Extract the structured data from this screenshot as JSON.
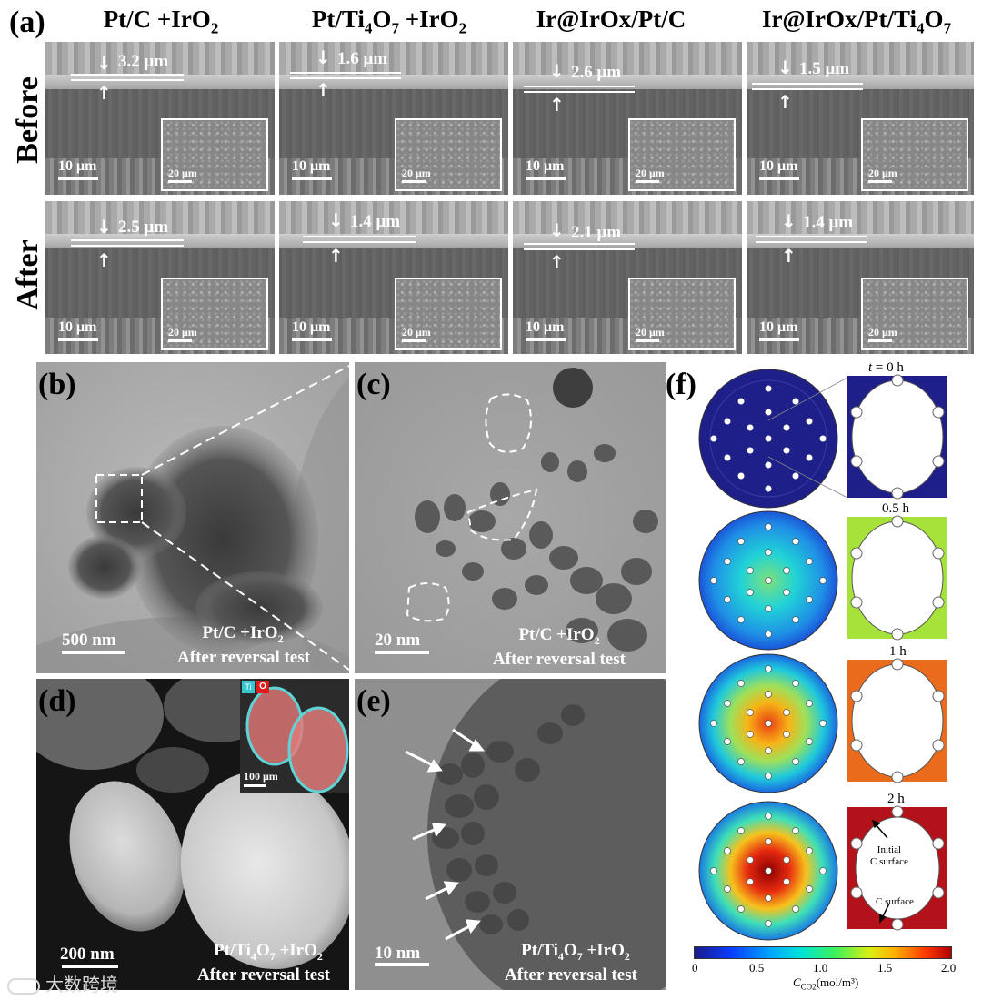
{
  "panel_a": {
    "letter": "(a)",
    "columns": [
      {
        "main": "Pt/C +IrO",
        "sub": "2",
        "rest": ""
      },
      {
        "main": "Pt/Ti",
        "sub": "4",
        "mid": "O",
        "sub2": "7",
        "rest": " +IrO",
        "sub3": "2"
      },
      {
        "main": "Ir@IrOx/Pt/C",
        "sub": "",
        "rest": ""
      },
      {
        "main": "Ir@IrOx/Pt/Ti",
        "sub": "4",
        "rest": "O",
        "sub2": "7"
      }
    ],
    "rows": [
      "Before",
      "After"
    ],
    "thickness": {
      "before": [
        "3.2 μm",
        "1.6 μm",
        "2.6 μm",
        "1.5 μm"
      ],
      "after": [
        "2.5 μm",
        "1.4 μm",
        "2.1 μm",
        "1.4 μm"
      ]
    },
    "scale_main": "10 μm",
    "scale_inset": "20 μm"
  },
  "panel_b": {
    "letter": "(b)",
    "scale": "500 nm",
    "caption1": "Pt/C +IrO",
    "caption1_sub": "2",
    "caption2": "After reversal test"
  },
  "panel_c": {
    "letter": "(c)",
    "scale": "20 nm",
    "caption1": "Pt/C +IrO",
    "caption1_sub": "2",
    "caption2": "After reversal test"
  },
  "panel_d": {
    "letter": "(d)",
    "scale": "200 nm",
    "caption1a": "Pt/Ti",
    "caption1b": "O",
    "caption1c": " +IrO",
    "s1": "4",
    "s2": "7",
    "s3": "2",
    "caption2": "After reversal test",
    "inset_scale": "100 μm",
    "inset_o": "O",
    "inset_ti": "Ti"
  },
  "panel_e": {
    "letter": "(e)",
    "scale": "10 nm",
    "caption1a": "Pt/Ti",
    "caption1b": "O",
    "caption1c": " +IrO",
    "s1": "4",
    "s2": "7",
    "s3": "2",
    "caption2": "After reversal test"
  },
  "panel_f": {
    "letter": "(f)",
    "times": [
      "t = 0 h",
      "0.5 h",
      "1 h",
      "2 h"
    ],
    "annot_initial": "Initial",
    "annot_initial2": "C surface",
    "annot_c": "C surface",
    "colorbar_ticks": [
      "0",
      "0.5",
      "1.0",
      "1.5",
      "2.0"
    ],
    "colorbar_range": [
      0,
      2.0
    ],
    "colorbar_title": "C",
    "colorbar_title_sub": "CO2",
    "colorbar_unit": "(mol/m³)",
    "colors": {
      "low": "#1a1a8a",
      "mid": "#00c8ff",
      "high": "#b00000"
    }
  },
  "watermark": "大数跨境"
}
